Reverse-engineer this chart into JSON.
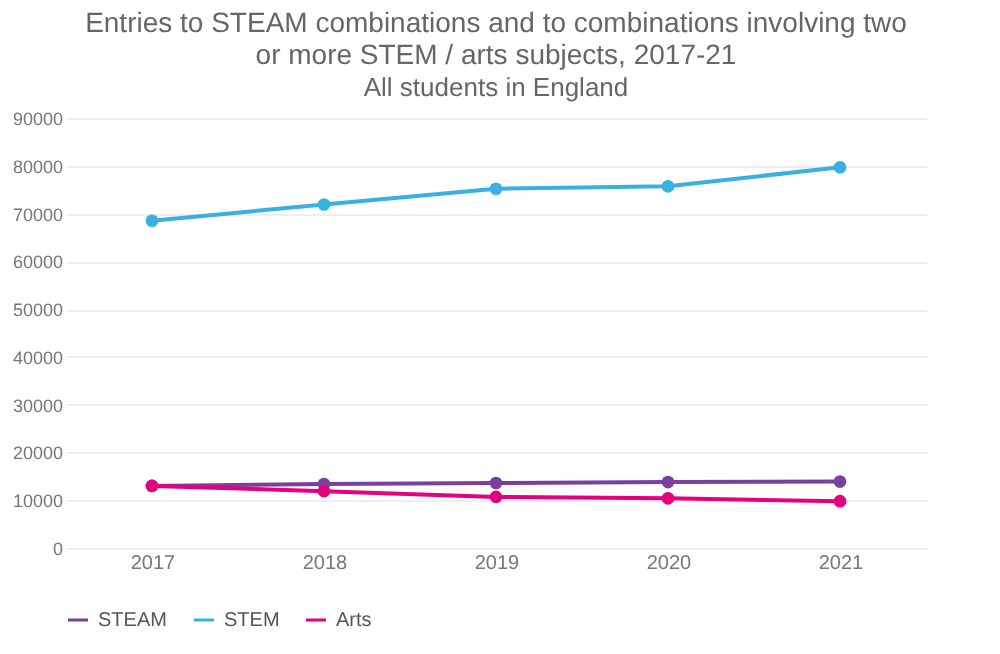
{
  "chart_data": {
    "type": "line",
    "title": [
      "Entries to STEAM combinations and to combinations involving two",
      "or more STEM / arts subjects, 2017-21"
    ],
    "subtitle": "All students in England",
    "categories": [
      "2017",
      "2018",
      "2019",
      "2020",
      "2021"
    ],
    "series": [
      {
        "name": "STEAM",
        "color": "#7b3fa0",
        "values": [
          13000,
          13400,
          13600,
          13800,
          13900
        ]
      },
      {
        "name": "STEM",
        "color": "#3aafe4",
        "values": [
          68500,
          71900,
          75200,
          75700,
          79700
        ]
      },
      {
        "name": "Arts",
        "color": "#e5007e",
        "values": [
          13000,
          11900,
          10700,
          10400,
          9800
        ]
      }
    ],
    "ylim": [
      0,
      90000
    ],
    "yticks": [
      0,
      10000,
      20000,
      30000,
      40000,
      50000,
      60000,
      70000,
      80000,
      90000
    ],
    "grid": "y",
    "legend": "bottom",
    "marker": "circle",
    "line_style": "solid"
  }
}
